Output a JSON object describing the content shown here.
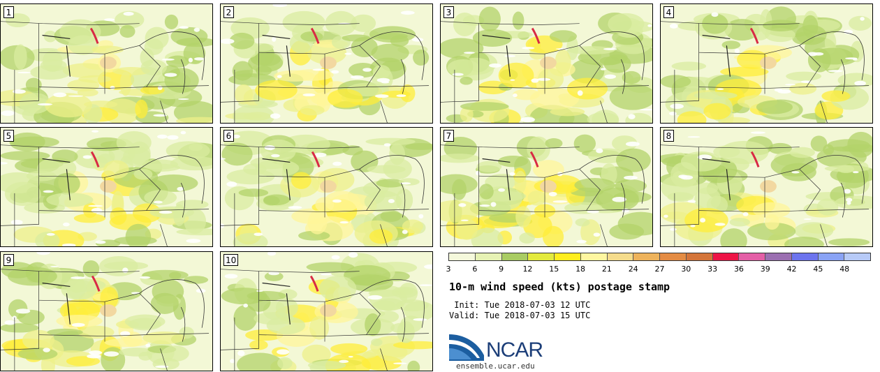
{
  "panels": [
    "1",
    "2",
    "3",
    "4",
    "5",
    "6",
    "7",
    "8",
    "9",
    "10"
  ],
  "colorbar": {
    "colors": [
      "#f5f9dc",
      "#e6f2b4",
      "#a9cc63",
      "#e3ea3e",
      "#ffee1f",
      "#fff6a0",
      "#f5dc8c",
      "#eeb35c",
      "#e48c44",
      "#d4753b",
      "#ee1447",
      "#e45fa7",
      "#9b6fb1",
      "#6d74ee",
      "#8aa3f5",
      "#b7caf7"
    ],
    "tick_labels": [
      "3",
      "6",
      "9",
      "12",
      "15",
      "18",
      "21",
      "24",
      "27",
      "30",
      "33",
      "36",
      "39",
      "42",
      "45",
      "48"
    ]
  },
  "title": "10-m wind speed (kts) postage stamp",
  "init_line": " Init: Tue 2018-07-03 12 UTC",
  "valid_line": "Valid: Tue 2018-07-03 15 UTC",
  "logo": {
    "name": "NCAR",
    "url": "ensemble.ucar.edu"
  }
}
